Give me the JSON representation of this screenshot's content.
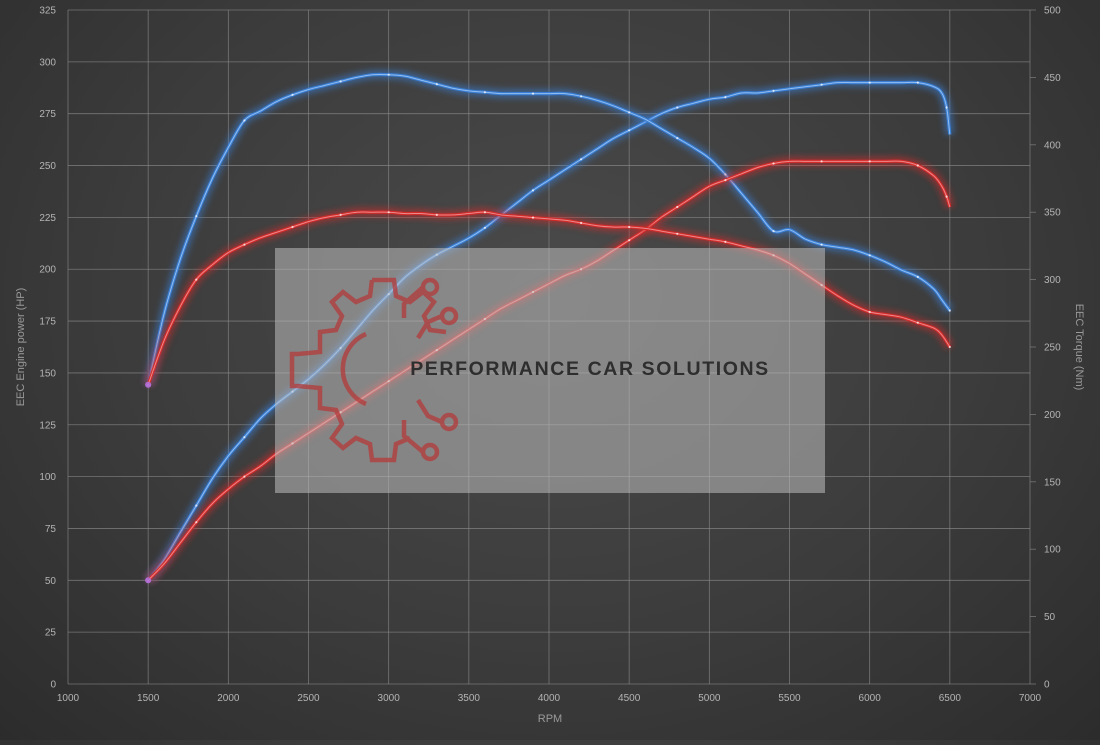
{
  "chart_data": {
    "type": "line",
    "xlabel": "RPM",
    "ylabel_left": "EEC Engine power (HP)",
    "ylabel_right": "EEC Torque (Nm)",
    "xlim": [
      1000,
      7000
    ],
    "ylim_left": [
      0,
      325
    ],
    "ylim_right": [
      0,
      500
    ],
    "x_ticks": [
      "1000",
      "1500",
      "2000",
      "2500",
      "3000",
      "3500",
      "4000",
      "4500",
      "5000",
      "5500",
      "6000",
      "6500",
      "7000"
    ],
    "y_left_ticks": [
      "0",
      "25",
      "50",
      "75",
      "100",
      "125",
      "150",
      "175",
      "200",
      "225",
      "250",
      "275",
      "300",
      "325"
    ],
    "y_right_ticks": [
      "0",
      "50",
      "100",
      "150",
      "200",
      "250",
      "300",
      "350",
      "400",
      "450",
      "500"
    ],
    "grid": true,
    "series": [
      {
        "axis": "left",
        "color": "#3a7fd5",
        "points": [
          [
            1500,
            50
          ],
          [
            1600,
            60
          ],
          [
            1700,
            73
          ],
          [
            1800,
            86
          ],
          [
            1900,
            99
          ],
          [
            2000,
            110
          ],
          [
            2100,
            119
          ],
          [
            2200,
            128
          ],
          [
            2300,
            135
          ],
          [
            2400,
            141
          ],
          [
            2500,
            147
          ],
          [
            2600,
            154
          ],
          [
            2700,
            162
          ],
          [
            2800,
            171
          ],
          [
            2900,
            180
          ],
          [
            3000,
            188
          ],
          [
            3100,
            196
          ],
          [
            3200,
            202
          ],
          [
            3300,
            207
          ],
          [
            3400,
            211
          ],
          [
            3500,
            215
          ],
          [
            3600,
            220
          ],
          [
            3700,
            226
          ],
          [
            3800,
            232
          ],
          [
            3900,
            238
          ],
          [
            4000,
            243
          ],
          [
            4100,
            248
          ],
          [
            4200,
            253
          ],
          [
            4300,
            258
          ],
          [
            4400,
            263
          ],
          [
            4500,
            267
          ],
          [
            4600,
            271
          ],
          [
            4700,
            275
          ],
          [
            4800,
            278
          ],
          [
            4900,
            280
          ],
          [
            5000,
            282
          ],
          [
            5100,
            283
          ],
          [
            5200,
            285
          ],
          [
            5300,
            285
          ],
          [
            5400,
            286
          ],
          [
            5500,
            287
          ],
          [
            5600,
            288
          ],
          [
            5700,
            289
          ],
          [
            5800,
            290
          ],
          [
            5900,
            290
          ],
          [
            6000,
            290
          ],
          [
            6100,
            290
          ],
          [
            6200,
            290
          ],
          [
            6300,
            290
          ],
          [
            6400,
            288
          ],
          [
            6450,
            285
          ],
          [
            6480,
            278
          ],
          [
            6500,
            265
          ]
        ]
      },
      {
        "axis": "right",
        "color": "#3a7fd5",
        "points": [
          [
            1500,
            222
          ],
          [
            1600,
            275
          ],
          [
            1700,
            315
          ],
          [
            1800,
            347
          ],
          [
            1900,
            375
          ],
          [
            2000,
            398
          ],
          [
            2100,
            418
          ],
          [
            2200,
            425
          ],
          [
            2300,
            432
          ],
          [
            2400,
            437
          ],
          [
            2500,
            441
          ],
          [
            2600,
            444
          ],
          [
            2700,
            447
          ],
          [
            2800,
            450
          ],
          [
            2900,
            452
          ],
          [
            3000,
            452
          ],
          [
            3100,
            451
          ],
          [
            3200,
            448
          ],
          [
            3300,
            445
          ],
          [
            3400,
            442
          ],
          [
            3500,
            440
          ],
          [
            3600,
            439
          ],
          [
            3700,
            438
          ],
          [
            3800,
            438
          ],
          [
            3900,
            438
          ],
          [
            4000,
            438
          ],
          [
            4100,
            438
          ],
          [
            4200,
            436
          ],
          [
            4300,
            433
          ],
          [
            4400,
            429
          ],
          [
            4500,
            424
          ],
          [
            4600,
            419
          ],
          [
            4700,
            412
          ],
          [
            4800,
            405
          ],
          [
            4900,
            398
          ],
          [
            5000,
            390
          ],
          [
            5100,
            378
          ],
          [
            5200,
            364
          ],
          [
            5300,
            350
          ],
          [
            5400,
            336
          ],
          [
            5500,
            337
          ],
          [
            5600,
            330
          ],
          [
            5700,
            326
          ],
          [
            5800,
            324
          ],
          [
            5900,
            322
          ],
          [
            6000,
            318
          ],
          [
            6100,
            313
          ],
          [
            6200,
            307
          ],
          [
            6300,
            302
          ],
          [
            6400,
            293
          ],
          [
            6450,
            285
          ],
          [
            6500,
            277
          ]
        ]
      },
      {
        "axis": "left",
        "color": "#d42b2b",
        "points": [
          [
            1500,
            50
          ],
          [
            1600,
            58
          ],
          [
            1700,
            68
          ],
          [
            1800,
            78
          ],
          [
            1900,
            87
          ],
          [
            2000,
            94
          ],
          [
            2100,
            100
          ],
          [
            2200,
            105
          ],
          [
            2300,
            111
          ],
          [
            2400,
            116
          ],
          [
            2500,
            121
          ],
          [
            2600,
            126
          ],
          [
            2700,
            131
          ],
          [
            2800,
            136
          ],
          [
            2900,
            141
          ],
          [
            3000,
            146
          ],
          [
            3100,
            151
          ],
          [
            3200,
            156
          ],
          [
            3300,
            161
          ],
          [
            3400,
            166
          ],
          [
            3500,
            171
          ],
          [
            3600,
            176
          ],
          [
            3700,
            181
          ],
          [
            3800,
            185
          ],
          [
            3900,
            189
          ],
          [
            4000,
            193
          ],
          [
            4100,
            197
          ],
          [
            4200,
            200
          ],
          [
            4300,
            204
          ],
          [
            4400,
            209
          ],
          [
            4500,
            214
          ],
          [
            4600,
            219
          ],
          [
            4700,
            225
          ],
          [
            4800,
            230
          ],
          [
            4900,
            235
          ],
          [
            5000,
            240
          ],
          [
            5100,
            243
          ],
          [
            5200,
            246
          ],
          [
            5300,
            249
          ],
          [
            5400,
            251
          ],
          [
            5500,
            252
          ],
          [
            5600,
            252
          ],
          [
            5700,
            252
          ],
          [
            5800,
            252
          ],
          [
            5900,
            252
          ],
          [
            6000,
            252
          ],
          [
            6100,
            252
          ],
          [
            6200,
            252
          ],
          [
            6300,
            250
          ],
          [
            6400,
            245
          ],
          [
            6450,
            240
          ],
          [
            6480,
            235
          ],
          [
            6500,
            230
          ]
        ]
      },
      {
        "axis": "right",
        "color": "#d42b2b",
        "points": [
          [
            1500,
            222
          ],
          [
            1600,
            255
          ],
          [
            1700,
            280
          ],
          [
            1800,
            300
          ],
          [
            1900,
            311
          ],
          [
            2000,
            320
          ],
          [
            2100,
            326
          ],
          [
            2200,
            331
          ],
          [
            2300,
            335
          ],
          [
            2400,
            339
          ],
          [
            2500,
            343
          ],
          [
            2600,
            346
          ],
          [
            2700,
            348
          ],
          [
            2800,
            350
          ],
          [
            2900,
            350
          ],
          [
            3000,
            350
          ],
          [
            3100,
            349
          ],
          [
            3200,
            349
          ],
          [
            3300,
            348
          ],
          [
            3400,
            348
          ],
          [
            3500,
            349
          ],
          [
            3600,
            350
          ],
          [
            3700,
            348
          ],
          [
            3800,
            347
          ],
          [
            3900,
            346
          ],
          [
            4000,
            345
          ],
          [
            4100,
            344
          ],
          [
            4200,
            342
          ],
          [
            4300,
            340
          ],
          [
            4400,
            339
          ],
          [
            4500,
            339
          ],
          [
            4600,
            338
          ],
          [
            4700,
            336
          ],
          [
            4800,
            334
          ],
          [
            4900,
            332
          ],
          [
            5000,
            330
          ],
          [
            5100,
            328
          ],
          [
            5200,
            325
          ],
          [
            5300,
            322
          ],
          [
            5400,
            318
          ],
          [
            5500,
            312
          ],
          [
            5600,
            304
          ],
          [
            5700,
            296
          ],
          [
            5800,
            288
          ],
          [
            5900,
            281
          ],
          [
            6000,
            276
          ],
          [
            6100,
            274
          ],
          [
            6200,
            272
          ],
          [
            6300,
            268
          ],
          [
            6400,
            264
          ],
          [
            6450,
            259
          ],
          [
            6500,
            250
          ]
        ]
      }
    ]
  },
  "watermark": {
    "text": "PERFORMANCE CAR SOLUTIONS",
    "logo_icon": "gear-circuit-logo-icon"
  }
}
